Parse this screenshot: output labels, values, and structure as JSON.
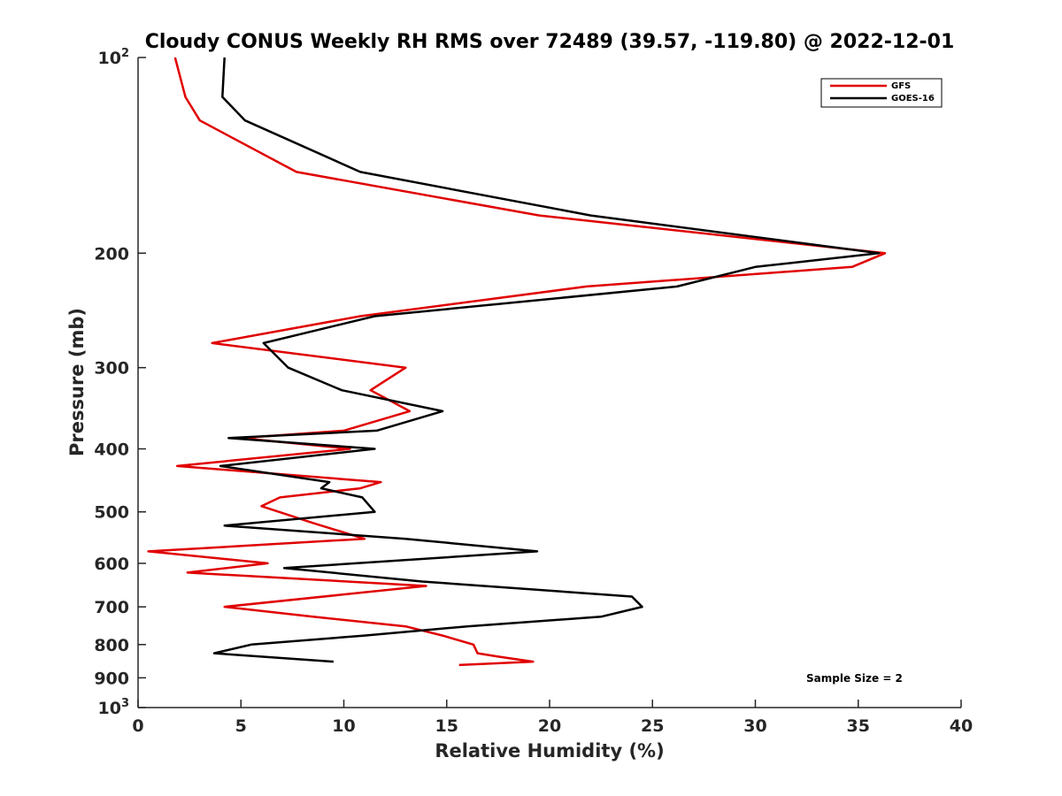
{
  "chart_data": {
    "type": "line",
    "title": "Cloudy CONUS Weekly RH RMS over 72489 (39.57, -119.80) @ 2022-12-01",
    "xlabel": "Relative Humidity (%)",
    "ylabel": "Pressure (mb)",
    "xlim": [
      0,
      40
    ],
    "ylim": [
      100,
      1000
    ],
    "y_scale": "log",
    "y_reversed": true,
    "grid": false,
    "legend_position": "top-right",
    "x_ticks": [
      "0",
      "5",
      "10",
      "15",
      "20",
      "25",
      "30",
      "35",
      "40"
    ],
    "y_ticks": [
      {
        "value": 200,
        "label": "200"
      },
      {
        "value": 300,
        "label": "300"
      },
      {
        "value": 400,
        "label": "400"
      },
      {
        "value": 500,
        "label": "500"
      },
      {
        "value": 600,
        "label": "600"
      },
      {
        "value": 700,
        "label": "700"
      },
      {
        "value": 800,
        "label": "800"
      },
      {
        "value": 900,
        "label": "900"
      }
    ],
    "y_tick_top": {
      "base": "10",
      "exp": "2"
    },
    "y_tick_bottom": {
      "base": "10",
      "exp": "3"
    },
    "series": [
      {
        "name": "GFS",
        "color": "#e00000",
        "points": [
          [
            1.8,
            100
          ],
          [
            2.3,
            115
          ],
          [
            3.0,
            125
          ],
          [
            7.7,
            150
          ],
          [
            19.5,
            175
          ],
          [
            36.3,
            200
          ],
          [
            34.7,
            210
          ],
          [
            21.8,
            225
          ],
          [
            10.8,
            250
          ],
          [
            3.6,
            275
          ],
          [
            13.0,
            300
          ],
          [
            11.3,
            325
          ],
          [
            13.2,
            350
          ],
          [
            10.0,
            375
          ],
          [
            5.0,
            385
          ],
          [
            10.3,
            400
          ],
          [
            1.9,
            425
          ],
          [
            11.8,
            450
          ],
          [
            10.8,
            460
          ],
          [
            6.9,
            475
          ],
          [
            6.0,
            490
          ],
          [
            8.5,
            520
          ],
          [
            11.0,
            550
          ],
          [
            0.5,
            575
          ],
          [
            6.3,
            600
          ],
          [
            2.4,
            620
          ],
          [
            14.0,
            650
          ],
          [
            4.2,
            700
          ],
          [
            8.5,
            725
          ],
          [
            13.0,
            750
          ],
          [
            14.8,
            775
          ],
          [
            16.3,
            800
          ],
          [
            16.5,
            825
          ],
          [
            17.5,
            835
          ],
          [
            19.2,
            850
          ],
          [
            15.6,
            860
          ]
        ]
      },
      {
        "name": "GOES-16",
        "color": "#000000",
        "points": [
          [
            4.2,
            100
          ],
          [
            4.1,
            115
          ],
          [
            5.2,
            125
          ],
          [
            10.8,
            150
          ],
          [
            22.0,
            175
          ],
          [
            36.0,
            200
          ],
          [
            30.0,
            210
          ],
          [
            26.2,
            225
          ],
          [
            11.5,
            250
          ],
          [
            6.1,
            275
          ],
          [
            7.3,
            300
          ],
          [
            9.9,
            325
          ],
          [
            14.8,
            350
          ],
          [
            11.6,
            375
          ],
          [
            4.4,
            385
          ],
          [
            11.5,
            400
          ],
          [
            4.0,
            425
          ],
          [
            9.3,
            450
          ],
          [
            8.9,
            460
          ],
          [
            10.9,
            475
          ],
          [
            11.5,
            500
          ],
          [
            4.2,
            525
          ],
          [
            13.0,
            550
          ],
          [
            19.4,
            575
          ],
          [
            7.1,
            610
          ],
          [
            13.8,
            640
          ],
          [
            24.0,
            675
          ],
          [
            24.5,
            700
          ],
          [
            22.5,
            725
          ],
          [
            16.0,
            750
          ],
          [
            11.0,
            775
          ],
          [
            5.5,
            800
          ],
          [
            3.7,
            825
          ],
          [
            9.5,
            850
          ]
        ]
      }
    ],
    "annotations": [
      {
        "text": "Sample Size = 2"
      }
    ]
  }
}
